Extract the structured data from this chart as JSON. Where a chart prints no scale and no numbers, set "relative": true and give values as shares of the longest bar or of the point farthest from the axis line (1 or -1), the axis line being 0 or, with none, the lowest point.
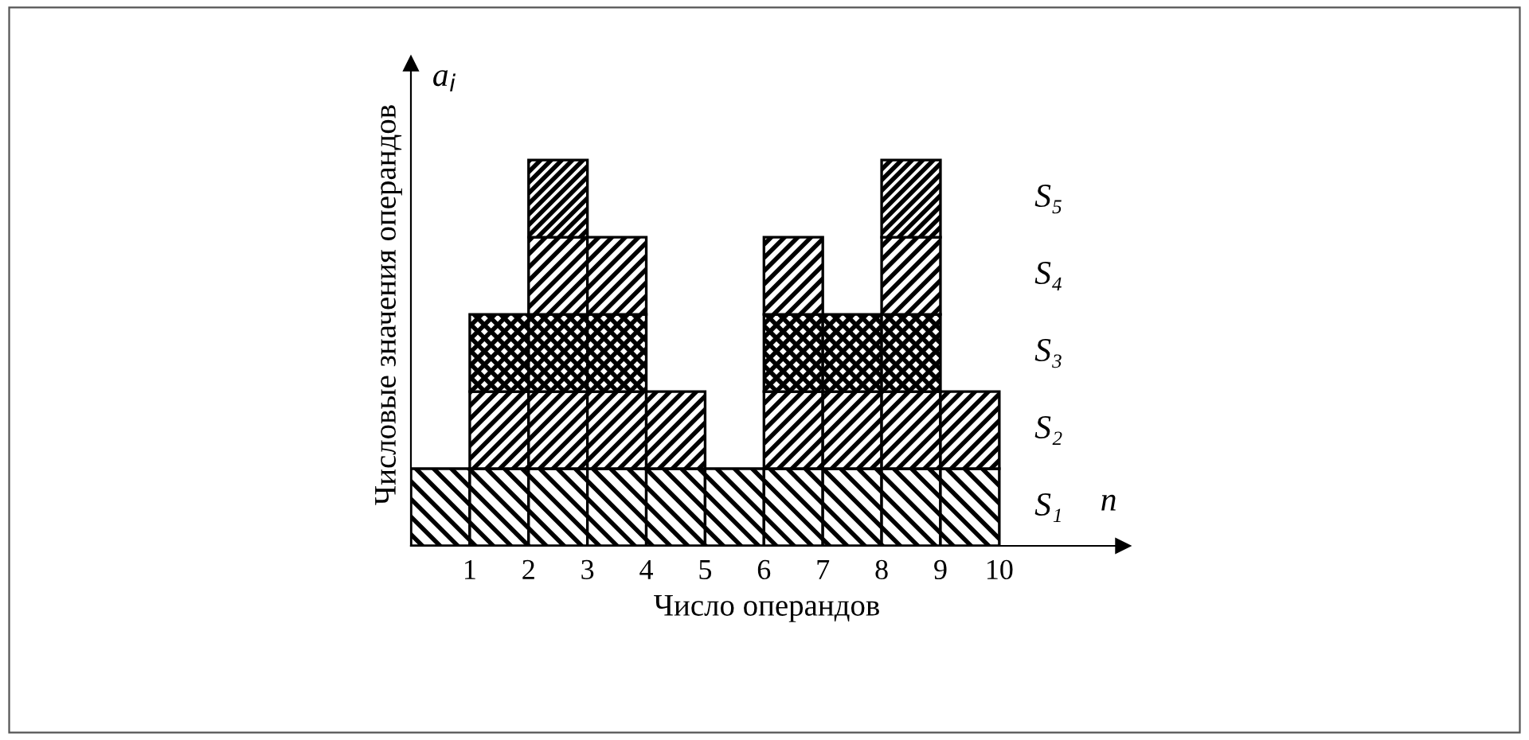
{
  "chart_data": {
    "type": "bar",
    "stacked": true,
    "relative": true,
    "xlabel": "Число операндов",
    "ylabel": "Числовые значения операндов",
    "annotations": [
      "a$_{i}$",
      "n"
    ],
    "x": [
      0.5,
      1.5,
      2.5,
      3.5,
      4.5,
      5.5,
      6.5,
      7.5,
      8.5,
      9.5
    ],
    "xlim": [
      0,
      12.1
    ],
    "xticks": [
      1,
      2,
      3,
      4,
      5,
      6,
      7,
      8,
      9,
      10
    ],
    "grid": false,
    "series": [
      {
        "name": "S₁",
        "color": "#000000",
        "values": [
          0.2,
          0.2,
          0.2,
          0.2,
          0.2,
          0.2,
          0.2,
          0.2,
          0.2,
          0.2
        ]
      },
      {
        "name": "S₂",
        "color": "#000000",
        "values": [
          null,
          0.2,
          0.2,
          0.2,
          0.2,
          null,
          0.2,
          0.2,
          0.2,
          0.2
        ]
      },
      {
        "name": "S₃",
        "color": "#000000",
        "values": [
          null,
          0.2,
          0.2,
          0.2,
          null,
          null,
          0.2,
          0.2,
          0.2,
          null
        ]
      },
      {
        "name": "S₄",
        "color": "#000000",
        "values": [
          null,
          null,
          0.2,
          0.2,
          null,
          null,
          0.2,
          null,
          0.2,
          null
        ]
      },
      {
        "name": "S₅",
        "color": "#000000",
        "values": [
          null,
          null,
          0.2,
          null,
          null,
          null,
          null,
          null,
          0.2,
          null
        ]
      }
    ]
  }
}
